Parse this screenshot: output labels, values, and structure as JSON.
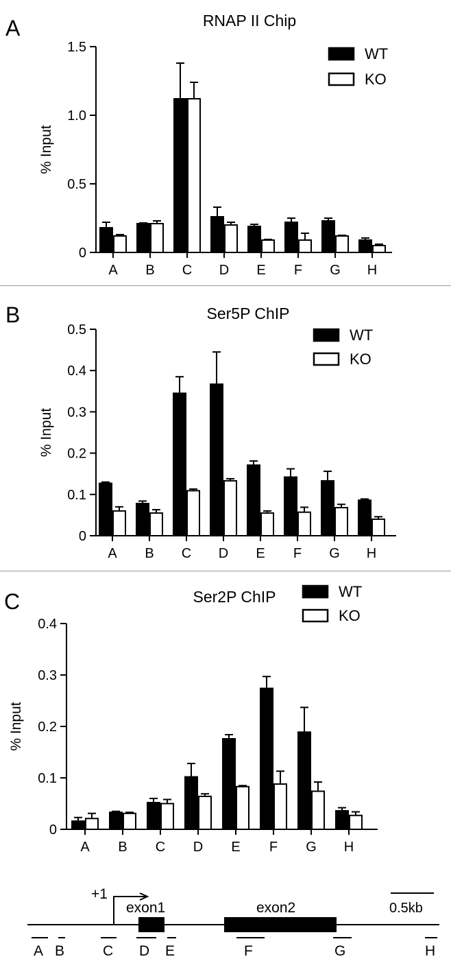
{
  "chart_data": [
    {
      "type": "bar",
      "panel_label": "A",
      "title": "RNAP II Chip",
      "ylabel": "% Input",
      "ylim": [
        0,
        1.5
      ],
      "yticks": [
        "0",
        "0.5",
        "1.0",
        "1.5"
      ],
      "legend_position": "top-right",
      "categories": [
        "A",
        "B",
        "C",
        "D",
        "E",
        "F",
        "G",
        "H"
      ],
      "series": [
        {
          "name": "WT",
          "color": "#000000",
          "values": [
            0.18,
            0.21,
            1.12,
            0.26,
            0.19,
            0.22,
            0.23,
            0.09
          ],
          "errors": [
            0.04,
            0.005,
            0.26,
            0.07,
            0.015,
            0.03,
            0.02,
            0.015
          ]
        },
        {
          "name": "KO",
          "color": "#ffffff",
          "values": [
            0.12,
            0.21,
            1.12,
            0.2,
            0.09,
            0.09,
            0.12,
            0.05
          ],
          "errors": [
            0.01,
            0.02,
            0.12,
            0.02,
            0.005,
            0.05,
            0.005,
            0.01
          ]
        }
      ]
    },
    {
      "type": "bar",
      "panel_label": "B",
      "title": "Ser5P ChIP",
      "ylabel": "% Input",
      "ylim": [
        0,
        0.5
      ],
      "yticks": [
        "0",
        "0.1",
        "0.2",
        "0.3",
        "0.4",
        "0.5"
      ],
      "legend_position": "top-right",
      "categories": [
        "A",
        "B",
        "C",
        "D",
        "E",
        "F",
        "G",
        "H"
      ],
      "series": [
        {
          "name": "WT",
          "color": "#000000",
          "values": [
            0.127,
            0.078,
            0.345,
            0.367,
            0.171,
            0.142,
            0.133,
            0.086
          ],
          "errors": [
            0.003,
            0.006,
            0.04,
            0.078,
            0.01,
            0.02,
            0.023,
            0.003
          ]
        },
        {
          "name": "KO",
          "color": "#ffffff",
          "values": [
            0.06,
            0.055,
            0.109,
            0.133,
            0.055,
            0.057,
            0.068,
            0.04
          ],
          "errors": [
            0.01,
            0.008,
            0.004,
            0.005,
            0.005,
            0.012,
            0.008,
            0.006
          ]
        }
      ]
    },
    {
      "type": "bar",
      "panel_label": "C",
      "title": "Ser2P ChIP",
      "ylabel": "% Input",
      "ylim": [
        0,
        0.4
      ],
      "yticks": [
        "0",
        "0.1",
        "0.2",
        "0.3",
        "0.4"
      ],
      "legend_position": "top-right",
      "categories": [
        "A",
        "B",
        "C",
        "D",
        "E",
        "F",
        "G",
        "H"
      ],
      "series": [
        {
          "name": "WT",
          "color": "#000000",
          "values": [
            0.016,
            0.033,
            0.052,
            0.102,
            0.176,
            0.274,
            0.189,
            0.036
          ],
          "errors": [
            0.007,
            0.002,
            0.008,
            0.026,
            0.008,
            0.023,
            0.048,
            0.006
          ]
        },
        {
          "name": "KO",
          "color": "#ffffff",
          "values": [
            0.021,
            0.031,
            0.05,
            0.064,
            0.083,
            0.088,
            0.074,
            0.027
          ],
          "errors": [
            0.01,
            0.002,
            0.008,
            0.005,
            0.002,
            0.025,
            0.018,
            0.007
          ]
        }
      ]
    }
  ],
  "gene_diagram": {
    "tss_label": "+1",
    "exons": [
      "exon1",
      "exon2"
    ],
    "scale_label": "0.5kb",
    "regions": [
      "A",
      "B",
      "C",
      "D",
      "E",
      "F",
      "G",
      "H"
    ]
  }
}
